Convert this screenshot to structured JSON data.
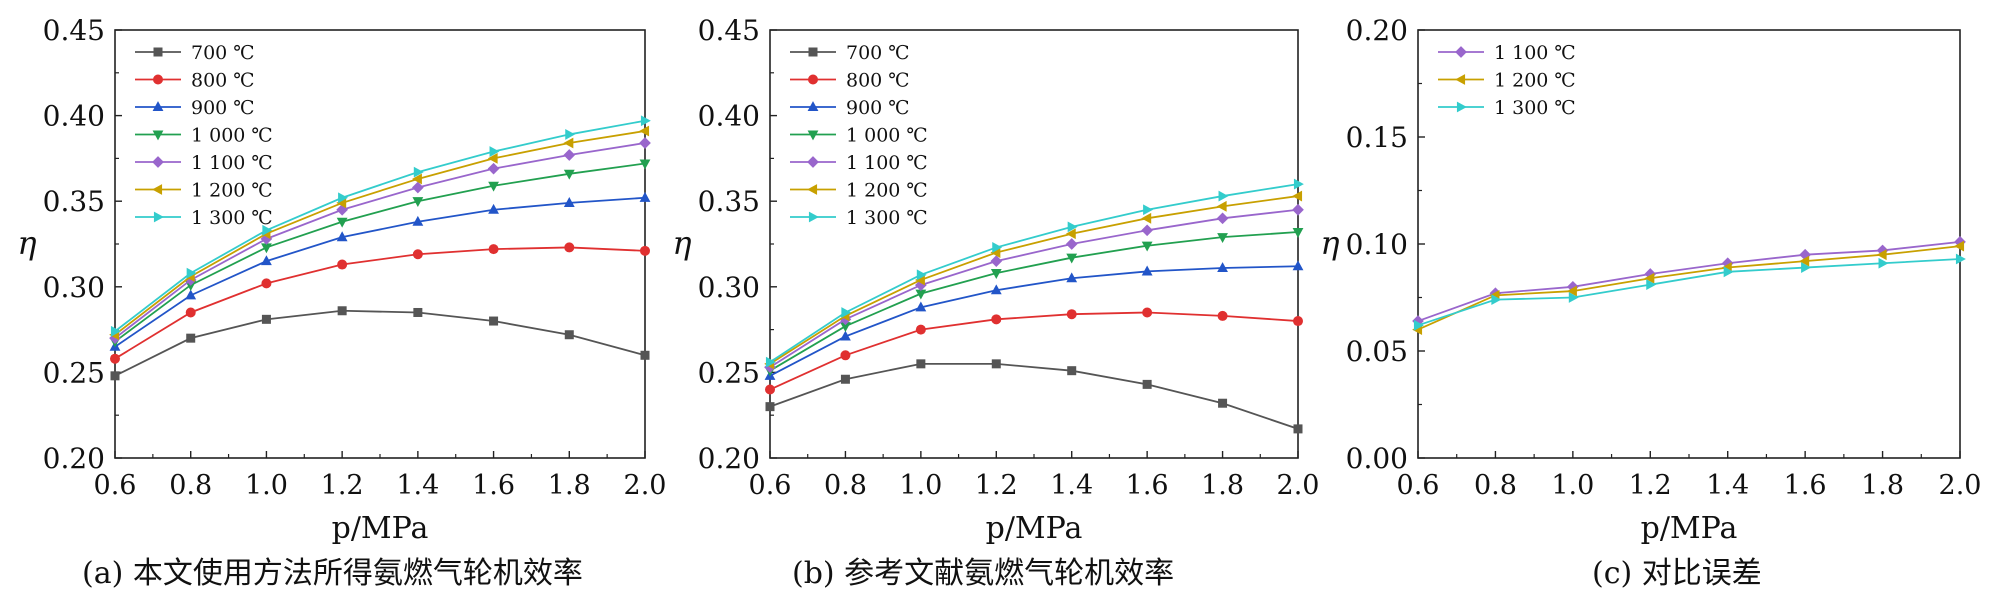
{
  "captions": [
    "(a) 本文使用方法所得氨燃气轮机效率",
    "(b) 参考文献氨燃气轮机效率",
    "(c) 对比误差"
  ],
  "series_styles": {
    "700 ℃": {
      "color": "#555555",
      "marker": "square"
    },
    "800 ℃": {
      "color": "#e03030",
      "marker": "circle"
    },
    "900 ℃": {
      "color": "#2255c8",
      "marker": "triangle-up"
    },
    "1 000 ℃": {
      "color": "#22a050",
      "marker": "triangle-down"
    },
    "1 100 ℃": {
      "color": "#9966cc",
      "marker": "diamond"
    },
    "1 200 ℃": {
      "color": "#c8a000",
      "marker": "triangle-left"
    },
    "1 300 ℃": {
      "color": "#33cccc",
      "marker": "triangle-right"
    }
  },
  "chart_data": [
    {
      "type": "line",
      "xlabel": "p/MPa",
      "ylabel": "η",
      "xlim": [
        0.6,
        2.0
      ],
      "ylim": [
        0.2,
        0.45
      ],
      "xticks": [
        "0.6",
        "0.8",
        "1.0",
        "1.2",
        "1.4",
        "1.6",
        "1.8",
        "2.0"
      ],
      "yticks": [
        "0.20",
        "0.25",
        "0.30",
        "0.35",
        "0.40",
        "0.45"
      ],
      "legend": "top-left",
      "x": [
        0.6,
        0.8,
        1.0,
        1.2,
        1.4,
        1.6,
        1.8,
        2.0
      ],
      "series": [
        {
          "name": "700 ℃",
          "values": [
            0.248,
            0.27,
            0.281,
            0.286,
            0.285,
            0.28,
            0.272,
            0.26
          ]
        },
        {
          "name": "800 ℃",
          "values": [
            0.258,
            0.285,
            0.302,
            0.313,
            0.319,
            0.322,
            0.323,
            0.321
          ]
        },
        {
          "name": "900 ℃",
          "values": [
            0.265,
            0.295,
            0.315,
            0.329,
            0.338,
            0.345,
            0.349,
            0.352
          ]
        },
        {
          "name": "1 000 ℃",
          "values": [
            0.268,
            0.301,
            0.323,
            0.338,
            0.35,
            0.359,
            0.366,
            0.372
          ]
        },
        {
          "name": "1 100 ℃",
          "values": [
            0.27,
            0.304,
            0.328,
            0.345,
            0.358,
            0.369,
            0.377,
            0.384
          ]
        },
        {
          "name": "1 200 ℃",
          "values": [
            0.272,
            0.306,
            0.331,
            0.349,
            0.363,
            0.375,
            0.384,
            0.391
          ]
        },
        {
          "name": "1 300 ℃",
          "values": [
            0.274,
            0.308,
            0.333,
            0.352,
            0.367,
            0.379,
            0.389,
            0.397
          ]
        }
      ]
    },
    {
      "type": "line",
      "xlabel": "p/MPa",
      "ylabel": "η",
      "xlim": [
        0.6,
        2.0
      ],
      "ylim": [
        0.2,
        0.45
      ],
      "xticks": [
        "0.6",
        "0.8",
        "1.0",
        "1.2",
        "1.4",
        "1.6",
        "1.8",
        "2.0"
      ],
      "yticks": [
        "0.20",
        "0.25",
        "0.30",
        "0.35",
        "0.40",
        "0.45"
      ],
      "legend": "top-left",
      "x": [
        0.6,
        0.8,
        1.0,
        1.2,
        1.4,
        1.6,
        1.8,
        2.0
      ],
      "series": [
        {
          "name": "700 ℃",
          "values": [
            0.23,
            0.246,
            0.255,
            0.255,
            0.251,
            0.243,
            0.232,
            0.217
          ]
        },
        {
          "name": "800 ℃",
          "values": [
            0.24,
            0.26,
            0.275,
            0.281,
            0.284,
            0.285,
            0.283,
            0.28
          ]
        },
        {
          "name": "900 ℃",
          "values": [
            0.248,
            0.271,
            0.288,
            0.298,
            0.305,
            0.309,
            0.311,
            0.312
          ]
        },
        {
          "name": "1 000 ℃",
          "values": [
            0.251,
            0.277,
            0.296,
            0.308,
            0.317,
            0.324,
            0.329,
            0.332
          ]
        },
        {
          "name": "1 100 ℃",
          "values": [
            0.253,
            0.281,
            0.301,
            0.315,
            0.325,
            0.333,
            0.34,
            0.345
          ]
        },
        {
          "name": "1 200 ℃",
          "values": [
            0.255,
            0.283,
            0.304,
            0.32,
            0.331,
            0.34,
            0.347,
            0.353
          ]
        },
        {
          "name": "1 300 ℃",
          "values": [
            0.256,
            0.285,
            0.307,
            0.323,
            0.335,
            0.345,
            0.353,
            0.36
          ]
        }
      ]
    },
    {
      "type": "line",
      "xlabel": "p/MPa",
      "ylabel": "η",
      "xlim": [
        0.6,
        2.0
      ],
      "ylim": [
        0.0,
        0.2
      ],
      "xticks": [
        "0.6",
        "0.8",
        "1.0",
        "1.2",
        "1.4",
        "1.6",
        "1.8",
        "2.0"
      ],
      "yticks": [
        "0.00",
        "0.05",
        "0.10",
        "0.15",
        "0.20"
      ],
      "legend": "top-left",
      "x": [
        0.6,
        0.8,
        1.0,
        1.2,
        1.4,
        1.6,
        1.8,
        2.0
      ],
      "series": [
        {
          "name": "1 100 ℃",
          "values": [
            0.064,
            0.077,
            0.08,
            0.086,
            0.091,
            0.095,
            0.097,
            0.101
          ]
        },
        {
          "name": "1 200 ℃",
          "values": [
            0.06,
            0.076,
            0.078,
            0.084,
            0.089,
            0.092,
            0.095,
            0.099
          ]
        },
        {
          "name": "1 300 ℃",
          "values": [
            0.062,
            0.074,
            0.075,
            0.081,
            0.087,
            0.089,
            0.091,
            0.093
          ]
        }
      ]
    }
  ]
}
